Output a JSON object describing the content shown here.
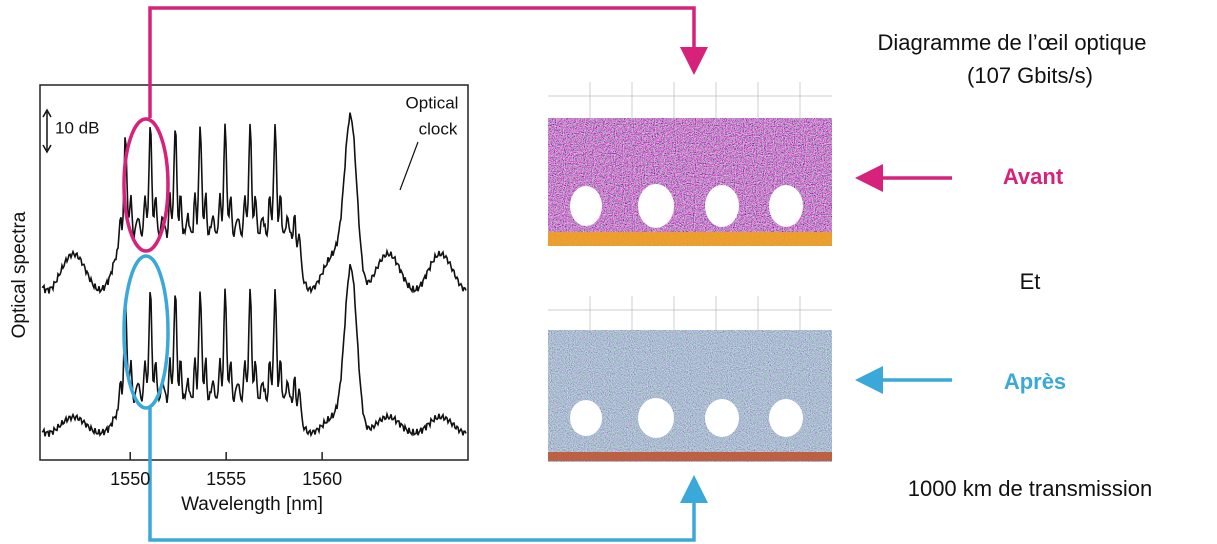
{
  "spectrum": {
    "ylabel": "Optical spectra",
    "xlabel": "Wavelength [nm]",
    "xlim": [
      1545.3,
      1567.6
    ],
    "xticks": [
      1550,
      1555,
      1560
    ],
    "scale_label": "10 dB",
    "annotation": [
      "Optical",
      "clock"
    ]
  },
  "eye_diagram": {
    "title": [
      "Diagramme de l’œil optique",
      "(107 Gbits/s)"
    ],
    "before": "Avant",
    "connector": "Et",
    "after": "Après",
    "note": "1000 km de transmission"
  }
}
